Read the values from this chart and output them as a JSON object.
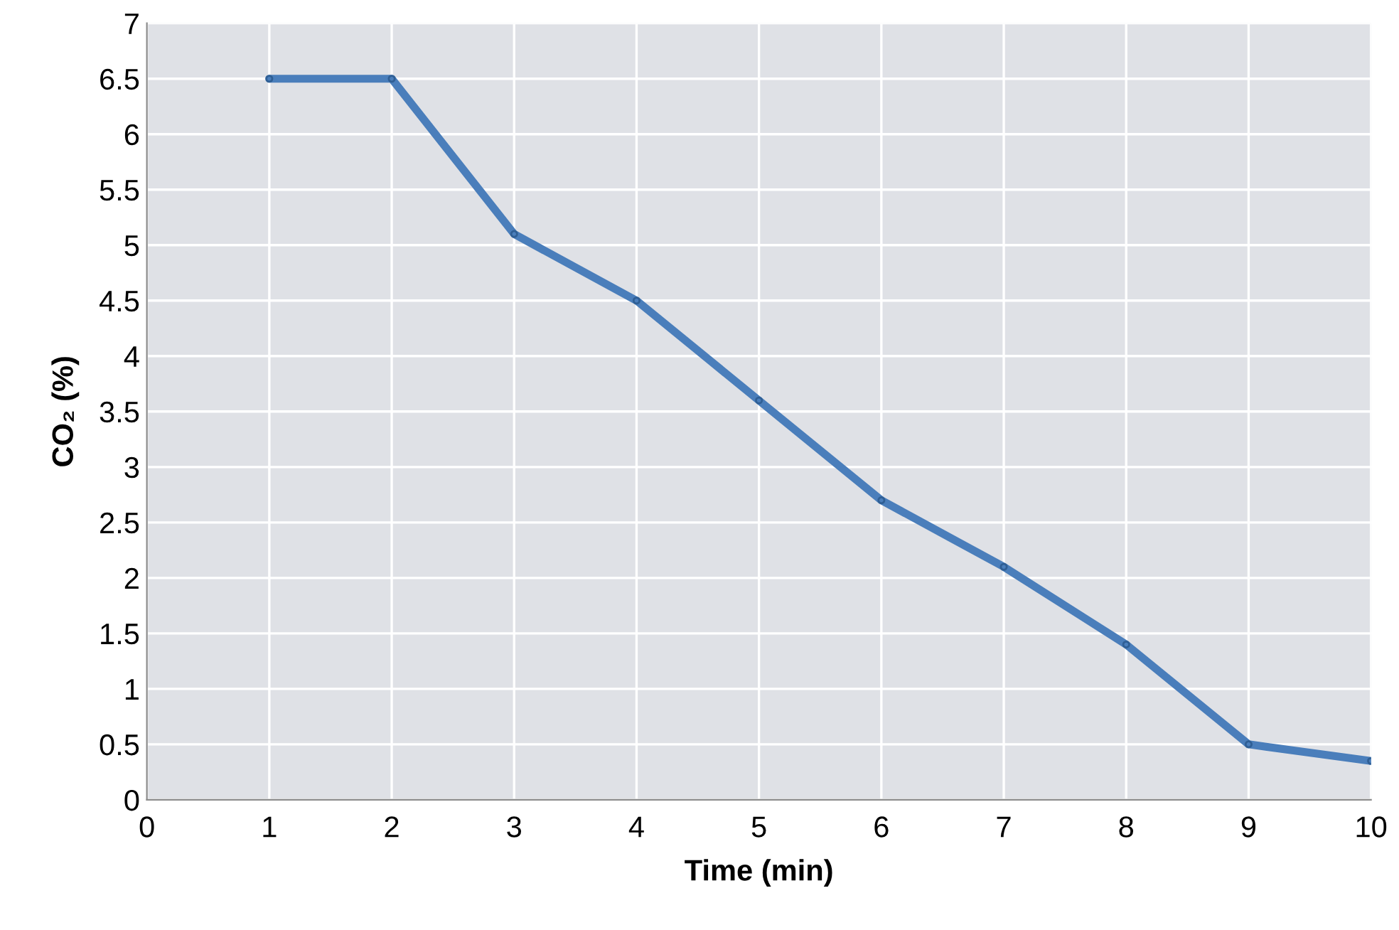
{
  "chart_data": {
    "type": "line",
    "xlabel": "Time (min)",
    "ylabel": "CO₂ (%)",
    "x": [
      1,
      2,
      3,
      4,
      5,
      6,
      7,
      8,
      9,
      10
    ],
    "series": [
      {
        "color": "#4a7ebb",
        "values": [
          6.5,
          6.5,
          5.1,
          4.5,
          3.6,
          2.7,
          2.1,
          1.4,
          0.5,
          0.35
        ]
      }
    ],
    "xlim": [
      0,
      10
    ],
    "xticks": [
      0,
      1,
      2,
      3,
      4,
      5,
      6,
      7,
      8,
      9,
      10
    ],
    "ylim": [
      0,
      7
    ],
    "yticks": [
      0,
      0.5,
      1,
      1.5,
      2,
      2.5,
      3,
      3.5,
      4,
      4.5,
      5,
      5.5,
      6,
      6.5,
      7
    ],
    "grid": true,
    "marker": "circle",
    "line_style": "solid"
  }
}
